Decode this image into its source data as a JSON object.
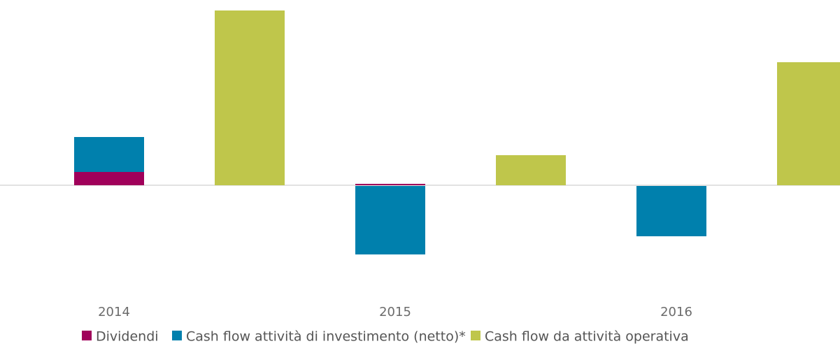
{
  "chart_data": {
    "type": "bar",
    "categories": [
      "2014",
      "2015",
      "2016"
    ],
    "series": [
      {
        "name": "Dividendi",
        "color": "#a0005a",
        "values": [
          19,
          2,
          0
        ]
      },
      {
        "name": "Cash flow attività di investimento (netto)*",
        "color": "#0080ad",
        "values": [
          50,
          -99,
          -73
        ]
      },
      {
        "name": "Cash flow da attività operativa",
        "color": "#bfc64b",
        "values": [
          250,
          43,
          176
        ]
      }
    ],
    "ylim": [
      -150,
      265
    ]
  }
}
